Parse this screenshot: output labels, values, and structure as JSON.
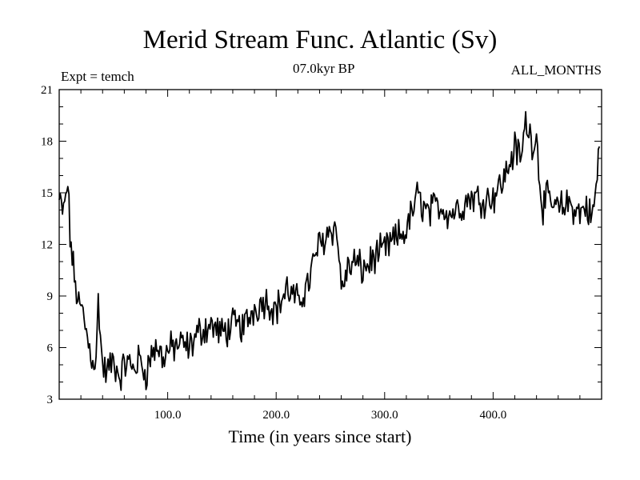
{
  "chart_data": {
    "type": "line",
    "title": "Merid Stream Func. Atlantic (Sv)",
    "subtitle": "07.0kyr BP",
    "annotation_left": "Expt = temch",
    "annotation_right": "ALL_MONTHS",
    "xlabel": "Time (in years since start)",
    "ylabel": "",
    "xlim": [
      0,
      500
    ],
    "ylim": [
      3,
      21
    ],
    "xticks": [
      100,
      200,
      300,
      400
    ],
    "xtick_labels": [
      "100.0",
      "200.0",
      "300.0",
      "400.0"
    ],
    "yticks": [
      3,
      6,
      9,
      12,
      15,
      18,
      21
    ],
    "ytick_labels": [
      "3",
      "6",
      "9",
      "12",
      "15",
      "18",
      "21"
    ],
    "series": [
      {
        "name": "Merid Stream Func. Atlantic",
        "color": "#000000",
        "x": [
          0,
          4,
          8,
          10,
          14,
          18,
          22,
          26,
          30,
          34,
          36,
          40,
          44,
          50,
          56,
          62,
          68,
          74,
          80,
          86,
          90,
          96,
          100,
          110,
          120,
          130,
          140,
          150,
          160,
          170,
          180,
          190,
          200,
          210,
          220,
          230,
          238,
          244,
          250,
          256,
          260,
          266,
          272,
          280,
          290,
          300,
          310,
          320,
          330,
          340,
          350,
          360,
          370,
          380,
          390,
          400,
          410,
          420,
          426,
          430,
          436,
          440,
          445,
          450,
          460,
          470,
          480,
          486,
          490,
          494,
          498
        ],
        "y": [
          14.5,
          13.8,
          15.6,
          12.5,
          10.0,
          8.5,
          8.0,
          6.5,
          5.5,
          5.0,
          8.8,
          4.8,
          4.6,
          5.2,
          4.3,
          5.2,
          4.8,
          5.3,
          4.5,
          5.8,
          6.0,
          5.4,
          5.8,
          6.2,
          6.0,
          7.0,
          7.3,
          6.8,
          7.3,
          7.2,
          8.3,
          8.8,
          8.2,
          9.4,
          8.6,
          9.8,
          11.8,
          12.3,
          13.0,
          12.8,
          9.5,
          10.5,
          11.0,
          10.5,
          11.2,
          11.7,
          12.3,
          12.8,
          14.8,
          13.8,
          14.3,
          13.8,
          14.2,
          14.8,
          14.6,
          14.8,
          15.8,
          17.6,
          17.0,
          19.2,
          18.0,
          18.2,
          14.2,
          14.6,
          14.0,
          14.4,
          13.8,
          14.3,
          13.5,
          14.5,
          17.8
        ]
      }
    ]
  }
}
